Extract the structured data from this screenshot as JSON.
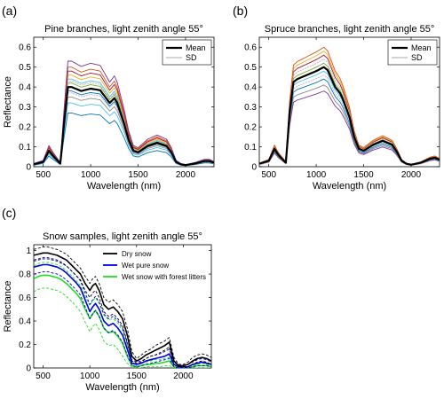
{
  "chart_data": [
    {
      "panel_label": "(a)",
      "type": "line",
      "title": "Pine branches, light zenith angle 55°",
      "xlabel": "Wavelength (nm)",
      "ylabel": "Reflectance",
      "xlim": [
        400,
        2300
      ],
      "ylim": [
        0,
        0.65
      ],
      "xticks": [
        500,
        1000,
        1500,
        2000
      ],
      "yticks": [
        0,
        0.1,
        0.2,
        0.3,
        0.4,
        0.5,
        0.6
      ],
      "legend": {
        "placement": "top-right",
        "entries": [
          "Mean",
          "SD"
        ]
      },
      "spectrum_shape": {
        "x": [
          400,
          500,
          560,
          600,
          680,
          720,
          760,
          800,
          900,
          1000,
          1100,
          1150,
          1200,
          1250,
          1280,
          1350,
          1400,
          1450,
          1500,
          1600,
          1700,
          1800,
          1850,
          1900,
          1950,
          2000,
          2100,
          2200,
          2250,
          2300
        ],
        "shape": [
          0.03,
          0.06,
          0.2,
          0.14,
          0.04,
          0.55,
          1.0,
          1.0,
          0.95,
          0.98,
          0.96,
          0.88,
          0.8,
          0.86,
          0.8,
          0.55,
          0.34,
          0.2,
          0.18,
          0.26,
          0.3,
          0.26,
          0.18,
          0.06,
          0.03,
          0.02,
          0.04,
          0.07,
          0.07,
          0.05
        ]
      },
      "series": [
        {
          "name": "Mean",
          "scale": 0.4,
          "color": "#000000",
          "width": 2.2
        },
        {
          "name": "SD",
          "scale": 0.43,
          "color": "#aaaaaa",
          "width": 0.8,
          "dash": "2,1"
        },
        {
          "name": "SD",
          "scale": 0.37,
          "color": "#aaaaaa",
          "width": 0.8,
          "dash": "2,1"
        },
        {
          "scale": 0.53,
          "color": "#7e2f8e"
        },
        {
          "scale": 0.5,
          "color": "#d95319"
        },
        {
          "scale": 0.48,
          "color": "#a2142f"
        },
        {
          "scale": 0.46,
          "color": "#edb120"
        },
        {
          "scale": 0.44,
          "color": "#4dbeee"
        },
        {
          "scale": 0.42,
          "color": "#77ac30"
        },
        {
          "scale": 0.38,
          "color": "#0072bd"
        },
        {
          "scale": 0.35,
          "color": "#888888"
        },
        {
          "scale": 0.32,
          "color": "#4dbeee"
        },
        {
          "scale": 0.27,
          "color": "#0072bd"
        }
      ]
    },
    {
      "panel_label": "(b)",
      "type": "line",
      "title": "Spruce branches, light zenith angle 55°",
      "xlabel": "Wavelength (nm)",
      "ylabel": "",
      "xlim": [
        400,
        2300
      ],
      "ylim": [
        0,
        0.65
      ],
      "xticks": [
        500,
        1000,
        1500,
        2000
      ],
      "yticks": [
        0,
        0.1,
        0.2,
        0.3,
        0.4,
        0.5,
        0.6
      ],
      "legend": {
        "placement": "top-right",
        "entries": [
          "Mean",
          "SD"
        ]
      },
      "spectrum_shape": {
        "x": [
          400,
          500,
          560,
          600,
          680,
          720,
          760,
          800,
          900,
          1000,
          1080,
          1120,
          1200,
          1250,
          1280,
          1350,
          1400,
          1450,
          1500,
          1600,
          1700,
          1800,
          1850,
          1900,
          1950,
          2000,
          2100,
          2200,
          2250,
          2300
        ],
        "shape": [
          0.03,
          0.06,
          0.18,
          0.12,
          0.04,
          0.55,
          0.85,
          0.88,
          0.92,
          0.96,
          1.0,
          0.97,
          0.8,
          0.74,
          0.68,
          0.5,
          0.3,
          0.18,
          0.16,
          0.22,
          0.26,
          0.22,
          0.15,
          0.06,
          0.03,
          0.02,
          0.04,
          0.08,
          0.09,
          0.07
        ]
      },
      "series": [
        {
          "name": "Mean",
          "scale": 0.5,
          "color": "#000000",
          "width": 2.2
        },
        {
          "name": "SD",
          "scale": 0.54,
          "color": "#aaaaaa",
          "width": 0.8,
          "dash": "2,1"
        },
        {
          "name": "SD",
          "scale": 0.46,
          "color": "#aaaaaa",
          "width": 0.8,
          "dash": "2,1"
        },
        {
          "scale": 0.6,
          "color": "#d95319"
        },
        {
          "scale": 0.58,
          "color": "#edb120"
        },
        {
          "scale": 0.56,
          "color": "#a2142f"
        },
        {
          "scale": 0.52,
          "color": "#77ac30"
        },
        {
          "scale": 0.48,
          "color": "#4dbeee"
        },
        {
          "scale": 0.44,
          "color": "#0072bd"
        },
        {
          "scale": 0.41,
          "color": "#888888"
        },
        {
          "scale": 0.38,
          "color": "#7e2f8e"
        }
      ]
    },
    {
      "panel_label": "(c)",
      "type": "line",
      "title": "Snow samples, light zenith angle 55°",
      "xlabel": "Wavelength (nm)",
      "ylabel": "Reflectance",
      "xlim": [
        400,
        2300
      ],
      "ylim": [
        0,
        1.05
      ],
      "xticks": [
        500,
        1000,
        1500,
        2000
      ],
      "yticks": [
        0,
        0.2,
        0.4,
        0.6,
        0.8,
        1
      ],
      "legend": {
        "placement": "top-right",
        "entries": [
          "Dry snow",
          "Wet pure snow",
          "Wet snow with forest litters"
        ]
      },
      "x": [
        400,
        450,
        500,
        550,
        600,
        650,
        700,
        750,
        800,
        850,
        900,
        950,
        1000,
        1030,
        1060,
        1100,
        1150,
        1200,
        1250,
        1300,
        1350,
        1400,
        1450,
        1500,
        1550,
        1600,
        1650,
        1700,
        1750,
        1800,
        1850,
        1900,
        1950,
        2000,
        2050,
        2100,
        2150,
        2200,
        2250,
        2300
      ],
      "series": [
        {
          "name": "Dry snow",
          "color": "#000000",
          "width": 1.6,
          "values": [
            0.96,
            0.97,
            0.98,
            0.98,
            0.97,
            0.96,
            0.94,
            0.92,
            0.88,
            0.84,
            0.8,
            0.72,
            0.66,
            0.7,
            0.72,
            0.66,
            0.54,
            0.5,
            0.52,
            0.48,
            0.42,
            0.28,
            0.1,
            0.06,
            0.08,
            0.11,
            0.13,
            0.15,
            0.17,
            0.19,
            0.22,
            0.06,
            0.02,
            0.02,
            0.03,
            0.06,
            0.08,
            0.09,
            0.08,
            0.06
          ]
        },
        {
          "name": "Dry snow SD",
          "color": "#000000",
          "width": 0.9,
          "dash": "3,2",
          "values": [
            1.01,
            1.02,
            1.03,
            1.03,
            1.02,
            1.01,
            0.99,
            0.97,
            0.93,
            0.89,
            0.85,
            0.78,
            0.72,
            0.76,
            0.78,
            0.72,
            0.6,
            0.56,
            0.58,
            0.54,
            0.48,
            0.34,
            0.14,
            0.08,
            0.11,
            0.14,
            0.16,
            0.19,
            0.21,
            0.23,
            0.26,
            0.09,
            0.03,
            0.03,
            0.05,
            0.09,
            0.11,
            0.12,
            0.11,
            0.09
          ]
        },
        {
          "name": "Dry snow SD",
          "color": "#000000",
          "width": 0.9,
          "dash": "3,2",
          "values": [
            0.91,
            0.92,
            0.93,
            0.93,
            0.92,
            0.91,
            0.89,
            0.87,
            0.83,
            0.79,
            0.75,
            0.66,
            0.6,
            0.64,
            0.66,
            0.6,
            0.48,
            0.44,
            0.46,
            0.42,
            0.36,
            0.22,
            0.06,
            0.04,
            0.05,
            0.08,
            0.1,
            0.11,
            0.13,
            0.15,
            0.18,
            0.03,
            0.01,
            0.01,
            0.01,
            0.03,
            0.05,
            0.06,
            0.05,
            0.03
          ]
        },
        {
          "name": "Wet pure snow",
          "color": "#0000dd",
          "width": 1.6,
          "values": [
            0.86,
            0.87,
            0.88,
            0.88,
            0.87,
            0.86,
            0.84,
            0.81,
            0.77,
            0.73,
            0.68,
            0.58,
            0.48,
            0.52,
            0.55,
            0.5,
            0.4,
            0.36,
            0.38,
            0.34,
            0.28,
            0.16,
            0.04,
            0.03,
            0.04,
            0.06,
            0.07,
            0.08,
            0.09,
            0.1,
            0.12,
            0.03,
            0.01,
            0.01,
            0.01,
            0.03,
            0.04,
            0.05,
            0.04,
            0.03
          ]
        },
        {
          "name": "Wet pure snow SD",
          "color": "#0000dd",
          "width": 0.9,
          "dash": "3,2",
          "values": [
            0.92,
            0.93,
            0.94,
            0.94,
            0.93,
            0.92,
            0.9,
            0.87,
            0.83,
            0.79,
            0.74,
            0.64,
            0.54,
            0.58,
            0.61,
            0.56,
            0.46,
            0.42,
            0.44,
            0.4,
            0.34,
            0.21,
            0.07,
            0.05,
            0.06,
            0.08,
            0.1,
            0.11,
            0.12,
            0.14,
            0.16,
            0.05,
            0.02,
            0.02,
            0.03,
            0.05,
            0.07,
            0.08,
            0.07,
            0.05
          ]
        },
        {
          "name": "Wet pure snow SD",
          "color": "#0000dd",
          "width": 0.9,
          "dash": "3,2",
          "values": [
            0.8,
            0.81,
            0.82,
            0.82,
            0.81,
            0.8,
            0.78,
            0.75,
            0.71,
            0.67,
            0.62,
            0.52,
            0.42,
            0.46,
            0.49,
            0.44,
            0.34,
            0.3,
            0.32,
            0.28,
            0.22,
            0.11,
            0.02,
            0.01,
            0.02,
            0.03,
            0.04,
            0.05,
            0.06,
            0.07,
            0.08,
            0.01,
            0.0,
            0.0,
            0.0,
            0.01,
            0.02,
            0.02,
            0.02,
            0.01
          ]
        },
        {
          "name": "Wet snow with forest litters",
          "color": "#22dd22",
          "width": 1.6,
          "values": [
            0.76,
            0.78,
            0.79,
            0.79,
            0.78,
            0.77,
            0.75,
            0.72,
            0.68,
            0.64,
            0.59,
            0.5,
            0.42,
            0.46,
            0.49,
            0.44,
            0.34,
            0.3,
            0.31,
            0.27,
            0.21,
            0.1,
            0.02,
            0.01,
            0.02,
            0.03,
            0.03,
            0.04,
            0.04,
            0.05,
            0.06,
            0.01,
            0.0,
            0.0,
            0.0,
            0.01,
            0.02,
            0.02,
            0.02,
            0.01
          ]
        },
        {
          "name": "Wet snow with forest litters SD",
          "color": "#22dd22",
          "width": 0.9,
          "dash": "3,2",
          "values": [
            0.87,
            0.89,
            0.9,
            0.9,
            0.89,
            0.88,
            0.86,
            0.83,
            0.79,
            0.75,
            0.7,
            0.61,
            0.53,
            0.57,
            0.6,
            0.55,
            0.45,
            0.41,
            0.42,
            0.38,
            0.32,
            0.18,
            0.05,
            0.03,
            0.04,
            0.05,
            0.06,
            0.07,
            0.07,
            0.08,
            0.09,
            0.02,
            0.01,
            0.01,
            0.01,
            0.02,
            0.03,
            0.04,
            0.03,
            0.02
          ]
        },
        {
          "name": "Wet snow with forest litters SD",
          "color": "#22dd22",
          "width": 0.9,
          "dash": "3,2",
          "values": [
            0.65,
            0.67,
            0.68,
            0.68,
            0.67,
            0.66,
            0.64,
            0.61,
            0.57,
            0.53,
            0.48,
            0.39,
            0.31,
            0.35,
            0.38,
            0.33,
            0.23,
            0.19,
            0.2,
            0.16,
            0.1,
            0.04,
            0.01,
            0.0,
            0.0,
            0.01,
            0.01,
            0.01,
            0.01,
            0.02,
            0.02,
            0.0,
            0.0,
            0.0,
            0.0,
            0.0,
            0.0,
            0.0,
            0.0,
            0.0
          ]
        }
      ]
    }
  ]
}
